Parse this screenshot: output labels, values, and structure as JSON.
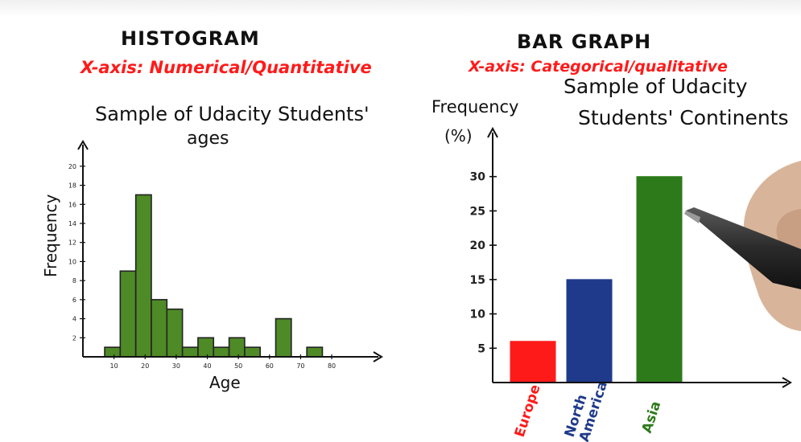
{
  "histogram": {
    "heading": "HISTOGRAM",
    "axis_note": "X-axis: Numerical/Quantitative",
    "title_line1": "Sample of Udacity Students'",
    "title_line2": "ages"
  },
  "bar_graph": {
    "heading": "BAR GRAPH",
    "axis_note": "X-axis: Categorical/qualitative",
    "title_line1": "Sample of Udacity",
    "title_line2": "Students' Continents"
  },
  "chart_data": [
    {
      "type": "bar",
      "title": "Sample of Udacity Students' ages",
      "xlabel": "Age",
      "ylabel": "Frequency",
      "bin_width": 5,
      "bin_starts": [
        7,
        12,
        17,
        22,
        27,
        32,
        37,
        42,
        47,
        52,
        62,
        72
      ],
      "values": [
        1,
        9,
        17,
        6,
        5,
        1,
        2,
        1,
        2,
        1,
        4,
        1
      ],
      "x_ticks": [
        "10",
        "20",
        "30",
        "40",
        "50",
        "60",
        "70",
        "80"
      ],
      "y_ticks": [
        "2",
        "4",
        "6",
        "8",
        "10",
        "12",
        "14",
        "16",
        "18",
        "20"
      ],
      "xlim": [
        0,
        95
      ],
      "ylim": [
        0,
        21
      ],
      "color": "#4e8a26"
    },
    {
      "type": "bar",
      "title": "Sample of Udacity Students' Continents",
      "xlabel": "",
      "ylabel": "Frequency (%)",
      "categories": [
        "Europe",
        "North America",
        "Asia"
      ],
      "values": [
        6,
        15,
        30
      ],
      "colors": [
        "#ff1a1a",
        "#1f3a8a",
        "#2d7a1a"
      ],
      "y_ticks": [
        "5",
        "10",
        "15",
        "20",
        "25",
        "30"
      ],
      "ylim": [
        0,
        35
      ]
    }
  ]
}
